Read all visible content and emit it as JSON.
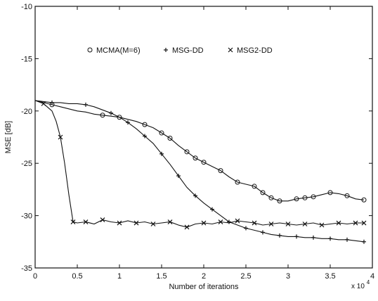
{
  "chart_data": {
    "type": "line",
    "title": "",
    "xlabel": "Number of iterations",
    "ylabel": "MSE [dB]",
    "x_multiplier_label": "x 10",
    "x_multiplier_exponent": "4",
    "xlim": [
      0,
      4
    ],
    "ylim": [
      -35,
      -10
    ],
    "xticks": [
      0,
      0.5,
      1,
      1.5,
      2,
      2.5,
      3,
      3.5,
      4
    ],
    "xtick_labels": [
      "0",
      "0.5",
      "1",
      "1.5",
      "2",
      "2.5",
      "3",
      "3.5",
      "4"
    ],
    "yticks": [
      -35,
      -30,
      -25,
      -20,
      -15,
      -10
    ],
    "ytick_labels": [
      "-35",
      "-30",
      "-25",
      "-20",
      "-15",
      "-10"
    ],
    "grid": false,
    "legend_position": "top-center",
    "series": [
      {
        "name": "MCMA(M=6)",
        "marker": "circle",
        "x": [
          0,
          0.1,
          0.2,
          0.3,
          0.4,
          0.5,
          0.6,
          0.7,
          0.8,
          0.9,
          1.0,
          1.1,
          1.2,
          1.3,
          1.4,
          1.5,
          1.6,
          1.7,
          1.8,
          1.9,
          2.0,
          2.1,
          2.2,
          2.3,
          2.4,
          2.5,
          2.6,
          2.7,
          2.8,
          2.9,
          3.0,
          3.1,
          3.2,
          3.3,
          3.4,
          3.5,
          3.6,
          3.7,
          3.8,
          3.9
        ],
        "y": [
          -19.0,
          -19.2,
          -19.4,
          -19.6,
          -19.8,
          -20.0,
          -20.1,
          -20.3,
          -20.4,
          -20.5,
          -20.6,
          -20.8,
          -21.0,
          -21.3,
          -21.6,
          -22.1,
          -22.6,
          -23.3,
          -23.9,
          -24.5,
          -24.9,
          -25.3,
          -25.7,
          -26.3,
          -26.8,
          -27.0,
          -27.2,
          -27.8,
          -28.3,
          -28.6,
          -28.6,
          -28.4,
          -28.3,
          -28.2,
          -28.0,
          -27.8,
          -27.9,
          -28.1,
          -28.4,
          -28.5
        ],
        "marker_x": [
          0.2,
          0.8,
          1.0,
          1.3,
          1.5,
          1.6,
          1.8,
          1.9,
          2.0,
          2.2,
          2.4,
          2.6,
          2.7,
          2.8,
          2.9,
          3.1,
          3.2,
          3.3,
          3.5,
          3.7,
          3.9
        ]
      },
      {
        "name": "MSG-DD",
        "marker": "plus",
        "x": [
          0,
          0.1,
          0.2,
          0.3,
          0.4,
          0.5,
          0.6,
          0.7,
          0.8,
          0.9,
          1.0,
          1.1,
          1.2,
          1.3,
          1.4,
          1.5,
          1.6,
          1.7,
          1.8,
          1.9,
          2.0,
          2.1,
          2.2,
          2.3,
          2.4,
          2.5,
          2.6,
          2.7,
          2.8,
          2.9,
          3.0,
          3.1,
          3.2,
          3.3,
          3.4,
          3.5,
          3.6,
          3.7,
          3.8,
          3.9
        ],
        "y": [
          -19.0,
          -19.1,
          -19.2,
          -19.2,
          -19.3,
          -19.3,
          -19.4,
          -19.6,
          -19.9,
          -20.2,
          -20.6,
          -21.1,
          -21.7,
          -22.4,
          -23.1,
          -24.1,
          -25.1,
          -26.2,
          -27.3,
          -28.1,
          -28.8,
          -29.4,
          -30.0,
          -30.6,
          -30.9,
          -31.2,
          -31.4,
          -31.6,
          -31.8,
          -31.9,
          -32.0,
          -32.0,
          -32.1,
          -32.1,
          -32.2,
          -32.2,
          -32.3,
          -32.3,
          -32.4,
          -32.5
        ],
        "marker_x": [
          0.2,
          0.6,
          0.9,
          1.1,
          1.3,
          1.5,
          1.7,
          1.9,
          2.1,
          2.3,
          2.5,
          2.7,
          2.9,
          3.1,
          3.3,
          3.5,
          3.7,
          3.9
        ]
      },
      {
        "name": "MSG2-DD",
        "marker": "x",
        "x": [
          0,
          0.1,
          0.2,
          0.25,
          0.3,
          0.35,
          0.4,
          0.45,
          0.5,
          0.6,
          0.7,
          0.8,
          0.9,
          1.0,
          1.1,
          1.2,
          1.3,
          1.4,
          1.5,
          1.6,
          1.7,
          1.8,
          1.9,
          2.0,
          2.1,
          2.2,
          2.3,
          2.4,
          2.5,
          2.6,
          2.7,
          2.8,
          2.9,
          3.0,
          3.1,
          3.2,
          3.3,
          3.4,
          3.5,
          3.6,
          3.7,
          3.8,
          3.9
        ],
        "y": [
          -19.0,
          -19.3,
          -20.0,
          -21.0,
          -22.5,
          -25.0,
          -28.0,
          -30.6,
          -30.7,
          -30.6,
          -30.8,
          -30.4,
          -30.6,
          -30.7,
          -30.5,
          -30.7,
          -30.6,
          -30.8,
          -30.7,
          -30.6,
          -30.9,
          -31.1,
          -30.8,
          -30.7,
          -30.8,
          -30.6,
          -30.7,
          -30.5,
          -30.6,
          -30.7,
          -30.9,
          -30.8,
          -30.7,
          -30.8,
          -30.9,
          -30.8,
          -30.7,
          -30.9,
          -30.8,
          -30.7,
          -30.8,
          -30.7,
          -30.7
        ],
        "marker_x": [
          0.1,
          0.3,
          0.45,
          0.6,
          0.8,
          1.0,
          1.2,
          1.4,
          1.6,
          1.8,
          2.0,
          2.2,
          2.4,
          2.6,
          2.8,
          3.0,
          3.2,
          3.4,
          3.6,
          3.8,
          3.9
        ]
      }
    ]
  }
}
